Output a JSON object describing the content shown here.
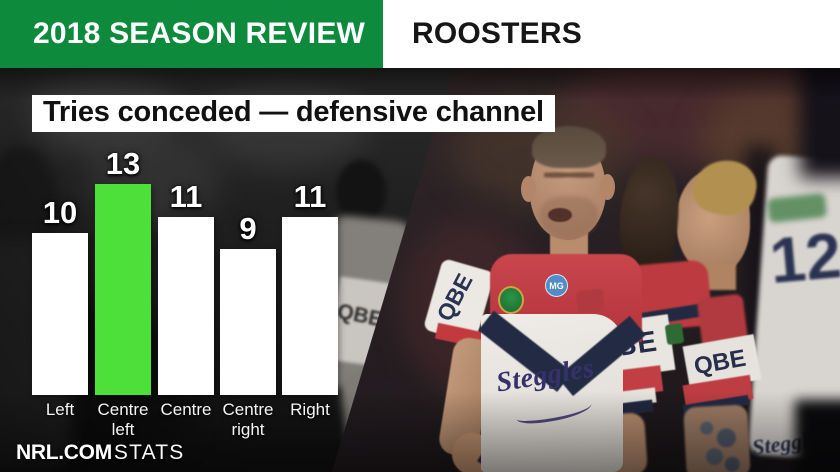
{
  "header": {
    "season_badge": "2018 SEASON REVIEW",
    "team_name": "ROOSTERS"
  },
  "chart_data": {
    "type": "bar",
    "title": "Tries conceded — defensive channel",
    "categories": [
      "Left",
      "Centre left",
      "Centre",
      "Centre right",
      "Right"
    ],
    "values": [
      10,
      13,
      11,
      9,
      11
    ],
    "highlight_index": 1,
    "highlight_category": "Centre left",
    "bar_color": "#ffffff",
    "highlight_color": "#4ddf3a",
    "value_labels_shown": true,
    "gridlines": false,
    "legend": "none",
    "axis_lines": "none",
    "ylim": [
      0,
      13
    ]
  },
  "footer_logo": {
    "bold": "NRL.COM",
    "light": "STATS"
  },
  "photo_text": {
    "qbe": "QBE",
    "steggles": "Steggles",
    "mg": "MG",
    "player_number": "12"
  },
  "colors": {
    "header_green": "#0d8a3c",
    "highlight_green": "#4ddf3a",
    "jersey_navy": "#232b44",
    "jersey_red": "#c23a40"
  }
}
